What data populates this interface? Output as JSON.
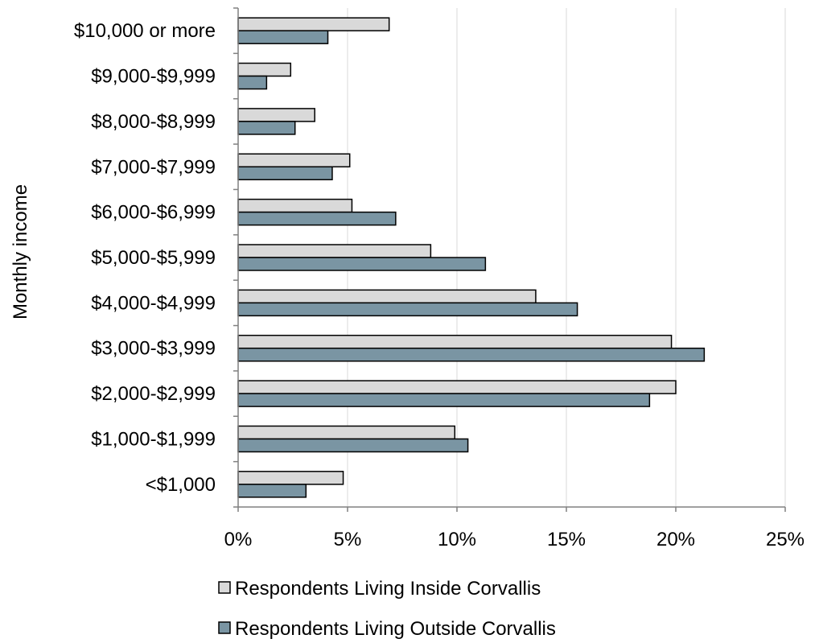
{
  "chart_data": {
    "type": "bar",
    "orientation": "horizontal",
    "categories": [
      "$10,000 or more",
      "$9,000-$9,999",
      "$8,000-$8,999",
      "$7,000-$7,999",
      "$6,000-$6,999",
      "$5,000-$5,999",
      "$4,000-$4,999",
      "$3,000-$3,999",
      "$2,000-$2,999",
      "$1,000-$1,999",
      "<$1,000"
    ],
    "series": [
      {
        "name": "Respondents Living Inside Corvallis",
        "color": "#d9d9d9",
        "values": [
          6.9,
          2.4,
          3.5,
          5.1,
          5.2,
          8.8,
          13.6,
          19.8,
          20.0,
          9.9,
          4.8
        ]
      },
      {
        "name": "Respondents Living Outside Corvallis",
        "color": "#7a95a3",
        "values": [
          4.1,
          1.3,
          2.6,
          4.3,
          7.2,
          11.3,
          15.5,
          21.3,
          18.8,
          10.5,
          3.1
        ]
      }
    ],
    "xlim": [
      0,
      25
    ],
    "xticks": [
      "0%",
      "5%",
      "10%",
      "15%",
      "20%",
      "25%"
    ],
    "ylabel": "Monthly income",
    "xlabel": "",
    "grid": "vertical",
    "legend": "bottom"
  }
}
